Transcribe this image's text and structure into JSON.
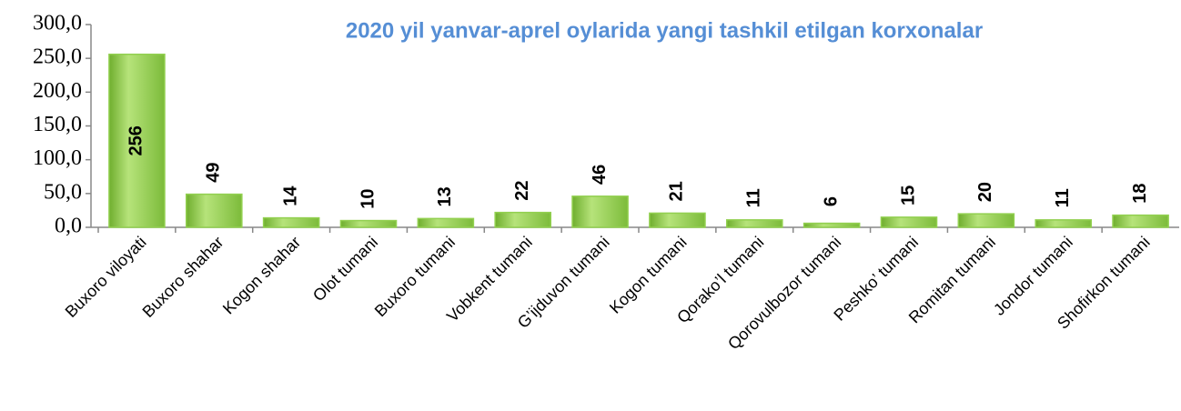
{
  "chart_data": {
    "type": "bar",
    "title": "2020 yil yanvar-aprel oylarida yangi tashkil etilgan korxonalar",
    "categories": [
      "Buxoro viloyati",
      "Buxoro shahar",
      "Kogon shahar",
      "Olot tumani",
      "Buxoro tumani",
      "Vobkent tumani",
      "G’ijduvon tumani",
      "Kogon tumani",
      "Qorako’l tumani",
      "Qorovulbozor tumani",
      "Peshko’ tumani",
      "Romitan tumani",
      "Jondor tumani",
      "Shofirkon tumani"
    ],
    "values": [
      256,
      49,
      14,
      10,
      13,
      22,
      46,
      21,
      11,
      6,
      15,
      20,
      11,
      18
    ],
    "color": "#92d050",
    "ylim": [
      0,
      300
    ],
    "yticks": [
      {
        "value": 0,
        "label": "0,0"
      },
      {
        "value": 50,
        "label": "50,0"
      },
      {
        "value": 100,
        "label": "100,0"
      },
      {
        "value": 150,
        "label": "150,0"
      },
      {
        "value": 200,
        "label": "200,0"
      },
      {
        "value": 250,
        "label": "250,0"
      },
      {
        "value": 300,
        "label": "300,0"
      }
    ],
    "grid": false
  }
}
